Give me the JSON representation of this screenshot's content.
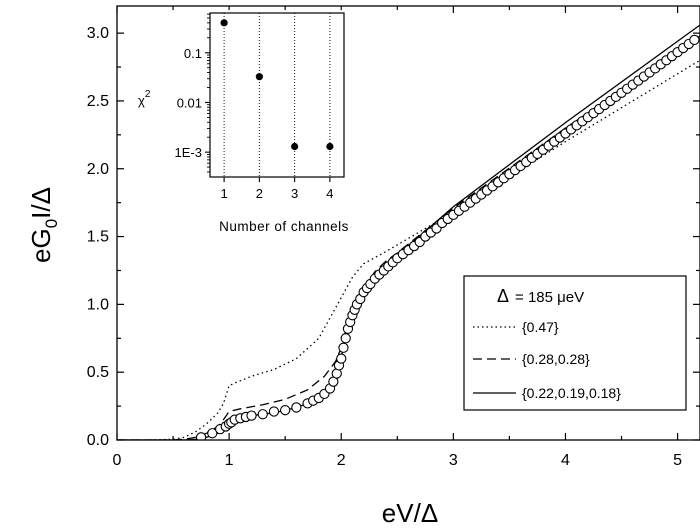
{
  "chart_data": [
    {
      "type": "line",
      "xlabel": "eV/Δ",
      "ylabel": "eG0I/Δ",
      "ylabel_parts": {
        "a": "eG",
        "sub": "0",
        "b": "I/Δ"
      },
      "xlim": [
        0,
        5.2
      ],
      "ylim": [
        0,
        3.2
      ],
      "xticks": [
        0,
        1,
        2,
        3,
        4,
        5
      ],
      "yticks": [
        0.0,
        0.5,
        1.0,
        1.5,
        2.0,
        2.5,
        3.0
      ],
      "xtick_labels": [
        "0",
        "1",
        "2",
        "3",
        "4",
        "5"
      ],
      "ytick_labels": [
        "0.0",
        "0.5",
        "1.0",
        "1.5",
        "2.0",
        "2.5",
        "3.0"
      ],
      "legend": {
        "title": "Δ = 185 μeV",
        "title_parts": {
          "symbol": "Δ",
          "text": "= 185 μeV"
        },
        "position": "right",
        "entries": [
          "{0.47}",
          "{0.28,0.28}",
          "{0.22,0.19,0.18}"
        ]
      },
      "series": [
        {
          "name": "{0.47}",
          "style": "dotted",
          "x": [
            0,
            0.3,
            0.5,
            0.6,
            0.7,
            0.8,
            0.9,
            0.95,
            1.0,
            1.05,
            1.2,
            1.4,
            1.6,
            1.8,
            2.0,
            2.1,
            2.2,
            2.4,
            3.0,
            4.0,
            5.0,
            5.2
          ],
          "y": [
            0,
            0,
            0.005,
            0.02,
            0.06,
            0.12,
            0.2,
            0.27,
            0.4,
            0.42,
            0.47,
            0.52,
            0.6,
            0.75,
            1.05,
            1.2,
            1.3,
            1.39,
            1.68,
            2.2,
            2.7,
            2.8
          ]
        },
        {
          "name": "{0.28,0.28}",
          "style": "dashed",
          "x": [
            0,
            0.5,
            0.6,
            0.7,
            0.8,
            0.9,
            0.95,
            1.0,
            1.1,
            1.3,
            1.5,
            1.7,
            1.85,
            1.95,
            2.0,
            2.05,
            2.1,
            2.2,
            2.3,
            2.4,
            2.5,
            3.0,
            4.0,
            5.0,
            5.2
          ],
          "y": [
            0,
            0,
            0.005,
            0.02,
            0.05,
            0.1,
            0.15,
            0.21,
            0.23,
            0.26,
            0.3,
            0.37,
            0.47,
            0.58,
            0.68,
            0.84,
            0.98,
            1.12,
            1.24,
            1.32,
            1.38,
            1.71,
            2.3,
            2.86,
            2.98
          ]
        },
        {
          "name": "{0.22,0.19,0.18}",
          "style": "solid",
          "x": [
            0,
            0.6,
            0.7,
            0.8,
            0.9,
            0.95,
            0.98,
            1.0,
            1.05,
            1.1,
            1.2,
            1.4,
            1.6,
            1.8,
            1.9,
            1.95,
            2.0,
            2.03,
            2.06,
            2.1,
            2.15,
            2.2,
            2.3,
            2.4,
            2.5,
            3.0,
            4.0,
            5.0,
            5.2
          ],
          "y": [
            0,
            0,
            0.005,
            0.02,
            0.05,
            0.09,
            0.12,
            0.14,
            0.15,
            0.17,
            0.18,
            0.2,
            0.24,
            0.3,
            0.36,
            0.44,
            0.6,
            0.74,
            0.86,
            0.96,
            1.05,
            1.12,
            1.22,
            1.29,
            1.36,
            1.72,
            2.34,
            2.94,
            3.06
          ]
        },
        {
          "name": "",
          "style": "open-circles",
          "x": [
            0.75,
            0.85,
            0.92,
            0.97,
            1.0,
            1.02,
            1.05,
            1.1,
            1.15,
            1.2,
            1.3,
            1.4,
            1.5,
            1.6,
            1.7,
            1.75,
            1.8,
            1.85,
            1.9,
            1.93,
            1.96,
            1.98,
            2.0,
            2.02,
            2.04,
            2.06,
            2.08,
            2.1,
            2.12,
            2.14,
            2.17,
            2.2,
            2.23,
            2.26,
            2.3,
            2.34,
            2.38,
            2.42,
            2.46,
            2.5,
            2.55,
            2.6,
            2.65,
            2.7,
            2.75,
            2.8,
            2.85,
            2.9,
            2.95,
            3.0,
            3.05,
            3.1,
            3.15,
            3.2,
            3.25,
            3.3,
            3.35,
            3.4,
            3.45,
            3.5,
            3.55,
            3.6,
            3.65,
            3.7,
            3.75,
            3.8,
            3.85,
            3.9,
            3.95,
            4.0,
            4.05,
            4.1,
            4.15,
            4.2,
            4.25,
            4.3,
            4.35,
            4.4,
            4.45,
            4.5,
            4.55,
            4.6,
            4.65,
            4.7,
            4.75,
            4.8,
            4.85,
            4.9,
            4.95,
            5.0,
            5.05,
            5.1,
            5.15
          ],
          "y": [
            0.02,
            0.05,
            0.08,
            0.1,
            0.12,
            0.13,
            0.15,
            0.16,
            0.17,
            0.18,
            0.19,
            0.21,
            0.22,
            0.24,
            0.27,
            0.29,
            0.31,
            0.34,
            0.38,
            0.43,
            0.49,
            0.55,
            0.6,
            0.68,
            0.75,
            0.82,
            0.87,
            0.92,
            0.96,
            1.0,
            1.04,
            1.09,
            1.12,
            1.15,
            1.19,
            1.22,
            1.25,
            1.28,
            1.31,
            1.34,
            1.37,
            1.4,
            1.43,
            1.46,
            1.5,
            1.53,
            1.56,
            1.6,
            1.63,
            1.66,
            1.69,
            1.72,
            1.75,
            1.78,
            1.81,
            1.84,
            1.87,
            1.9,
            1.93,
            1.96,
            1.99,
            2.02,
            2.05,
            2.08,
            2.11,
            2.14,
            2.17,
            2.2,
            2.23,
            2.26,
            2.29,
            2.32,
            2.35,
            2.38,
            2.41,
            2.44,
            2.47,
            2.5,
            2.53,
            2.56,
            2.59,
            2.62,
            2.65,
            2.68,
            2.71,
            2.74,
            2.77,
            2.8,
            2.83,
            2.86,
            2.89,
            2.92,
            2.95
          ]
        }
      ]
    },
    {
      "type": "scatter",
      "xlabel": "Number of channels",
      "ylabel": "χ²",
      "ylabel_parts": {
        "a": "χ",
        "sup": "2"
      },
      "yscale": "log",
      "xlim": [
        0.6,
        4.4
      ],
      "ylim_log10": [
        -3.5,
        -0.2
      ],
      "xticks": [
        1,
        2,
        3,
        4
      ],
      "xtick_labels": [
        "1",
        "2",
        "3",
        "4"
      ],
      "yticks": [
        0.1,
        0.01,
        0.001
      ],
      "ytick_labels": [
        "0.1",
        "0.01",
        "1E-3"
      ],
      "vertical_dotted_lines_at": [
        1,
        2,
        3,
        4
      ],
      "x": [
        1,
        2,
        3,
        4
      ],
      "y": [
        0.4,
        0.033,
        0.0013,
        0.0013
      ]
    }
  ]
}
